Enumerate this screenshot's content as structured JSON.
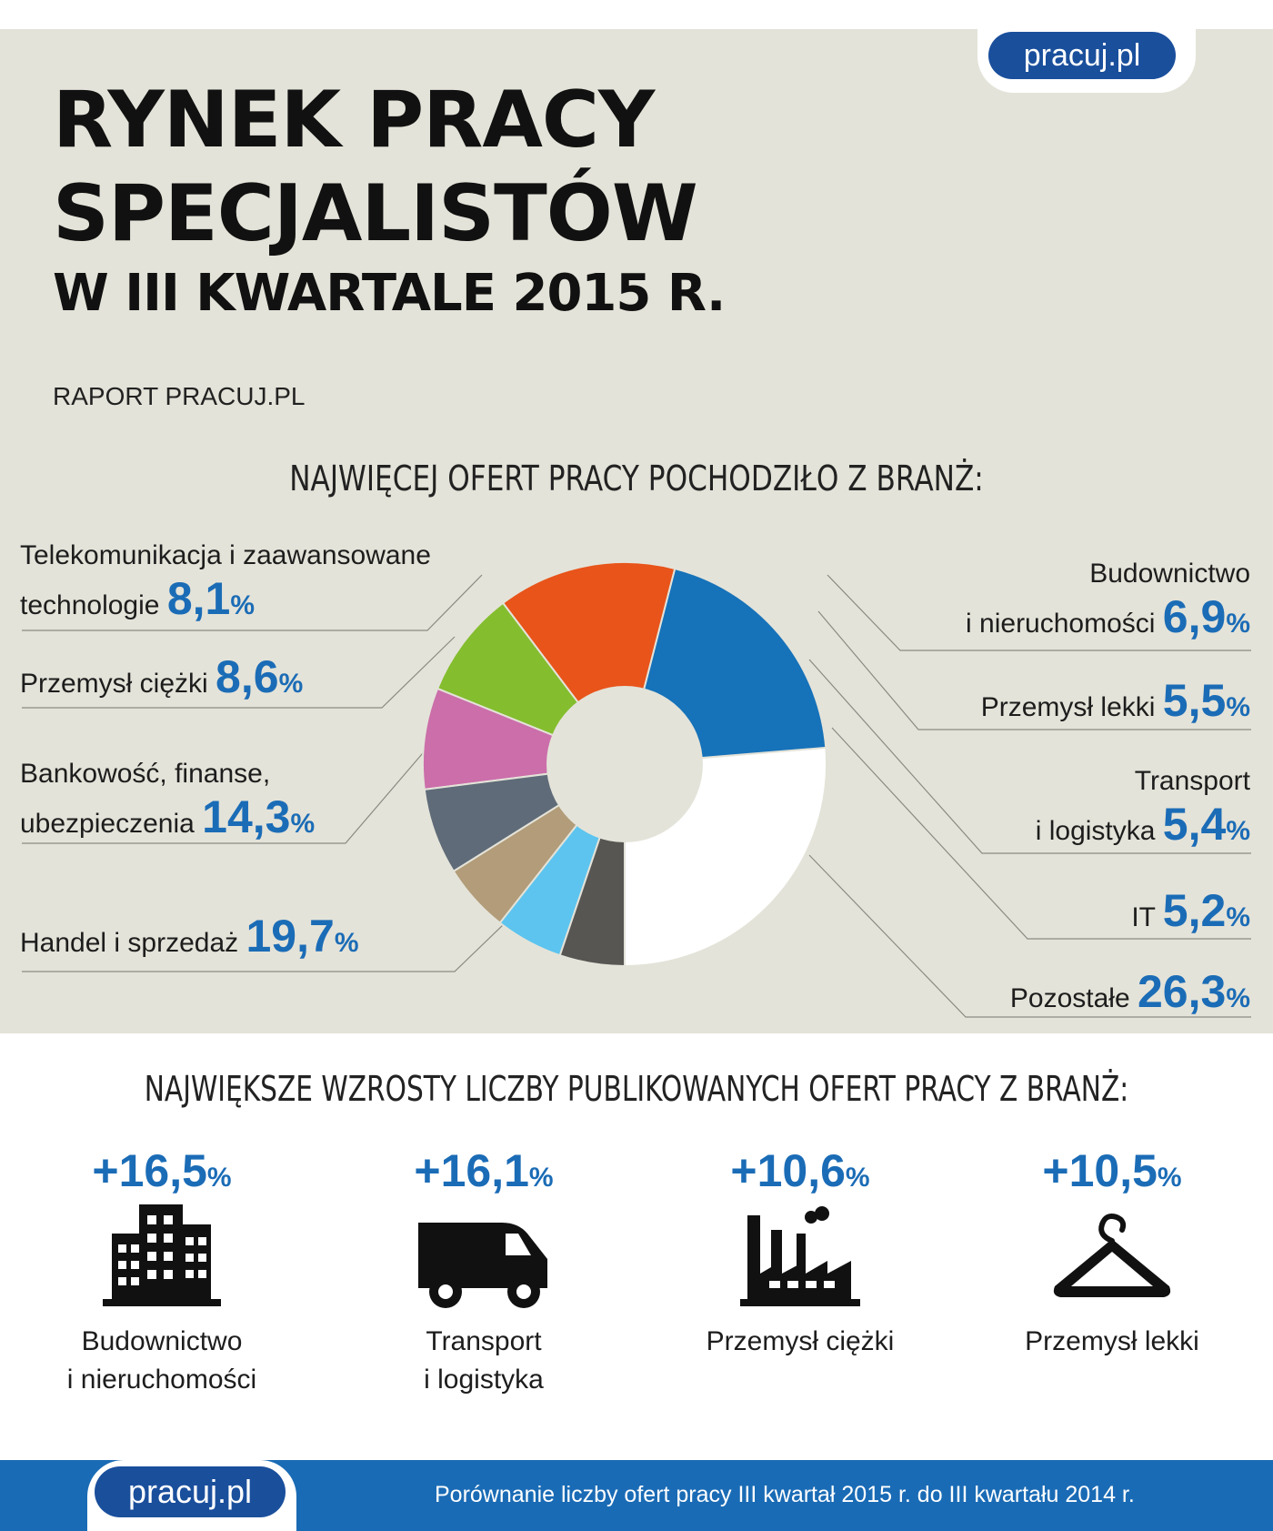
{
  "brand": {
    "logo": "pracuj.pl"
  },
  "header": {
    "line1": "RYNEK PRACY",
    "line2": "SPECJALISTÓW",
    "line3": "W III KWARTALE 2015 R.",
    "report": "RAPORT PRACUJ.PL"
  },
  "section1": {
    "heading": "NAJWIĘCEJ OFERT PRACY POCHODZIŁO Z BRANŻ:"
  },
  "chart_data": {
    "type": "pie",
    "title": "NAJWIĘCEJ OFERT PRACY POCHODZIŁO Z BRANŻ:",
    "unit": "%",
    "slices": [
      {
        "name": "Pozostałe",
        "value": 26.3,
        "label": "26,3",
        "color": "#ffffff"
      },
      {
        "name": "Handel i sprzedaż",
        "value": 19.7,
        "label": "19,7",
        "color": "#1672b9"
      },
      {
        "name": "Bankowość, finanse, ubezpieczenia",
        "value": 14.3,
        "label": "14,3",
        "color": "#e8541a"
      },
      {
        "name": "Przemysł ciężki",
        "value": 8.6,
        "label": "8,6",
        "color": "#84bd2e"
      },
      {
        "name": "Telekomunikacja i zaawansowane technologie",
        "value": 8.1,
        "label": "8,1",
        "color": "#cb6eaa"
      },
      {
        "name": "Budownictwo i nieruchomości",
        "value": 6.9,
        "label": "6,9",
        "color": "#5f6b78"
      },
      {
        "name": "Przemysł lekki",
        "value": 5.5,
        "label": "5,5",
        "color": "#b29c79"
      },
      {
        "name": "Transport i logistyka",
        "value": 5.4,
        "label": "5,4",
        "color": "#5cc4ef"
      },
      {
        "name": "IT",
        "value": 5.2,
        "label": "5,2",
        "color": "#585653"
      }
    ]
  },
  "labels": {
    "telekom": {
      "line1": "Telekomunikacja  i zaawansowane",
      "line2": "technologie",
      "pct": "8,1"
    },
    "ciezki": {
      "line1": "Przemysł ciężki",
      "pct": "8,6"
    },
    "bank": {
      "line1": "Bankowość, finanse,",
      "line2": "ubezpieczenia",
      "pct": "14,3"
    },
    "handel": {
      "line1": "Handel i sprzedaż",
      "pct": "19,7"
    },
    "budow": {
      "line1": "Budownictwo",
      "line2": "i nieruchomości",
      "pct": "6,9"
    },
    "lekki": {
      "line1": "Przemysł lekki",
      "pct": "5,5"
    },
    "transport": {
      "line1": "Transport",
      "line2": "i logistyka",
      "pct": "5,4"
    },
    "it": {
      "line1": "IT",
      "pct": "5,2"
    },
    "pozostale": {
      "line1": "Pozostałe",
      "pct": "26,3"
    },
    "percent_sign": "%"
  },
  "section2": {
    "heading": "NAJWIĘKSZE WZROSTY LICZBY  PUBLIKOWANYCH OFERT PRACY Z BRANŻ:",
    "items": [
      {
        "value": "+16,5",
        "name": "Budownictwo\ni nieruchomości",
        "icon": "buildings-icon"
      },
      {
        "value": "+16,1",
        "name": "Transport\ni logistyka",
        "icon": "truck-icon"
      },
      {
        "value": "+10,6",
        "name": "Przemysł ciężki",
        "icon": "factory-icon"
      },
      {
        "value": "+10,5",
        "name": "Przemysł lekki",
        "icon": "hanger-icon"
      }
    ]
  },
  "footer": {
    "logo": "pracuj.pl",
    "note": "Porównanie liczby ofert pracy III kwartał 2015 r. do III kwartału 2014 r."
  }
}
